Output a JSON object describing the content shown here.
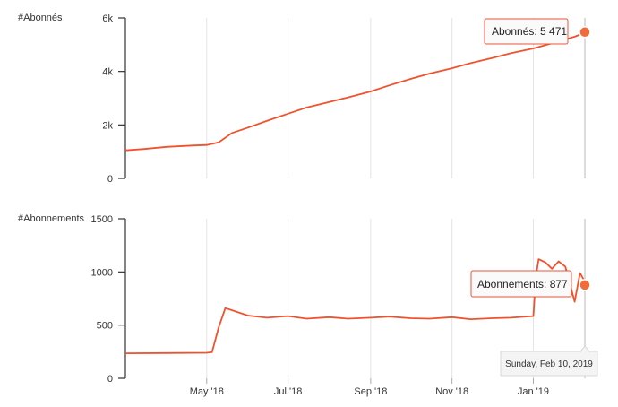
{
  "chart_data": [
    {
      "type": "line",
      "title": "",
      "ylabel": "#Abonnés",
      "xlabel": "",
      "ylim": [
        0,
        6000
      ],
      "yticks": [
        "0",
        "2k",
        "4k",
        "6k"
      ],
      "xticks": [
        "May '18",
        "Jul '18",
        "Sep '18",
        "Nov '18",
        "Jan '19"
      ],
      "x": [
        "2018-03-01",
        "2018-03-15",
        "2018-04-01",
        "2018-04-20",
        "2018-05-01",
        "2018-05-10",
        "2018-05-20",
        "2018-06-01",
        "2018-06-15",
        "2018-07-01",
        "2018-07-15",
        "2018-08-01",
        "2018-08-15",
        "2018-09-01",
        "2018-09-15",
        "2018-10-01",
        "2018-10-15",
        "2018-11-01",
        "2018-11-15",
        "2018-12-01",
        "2018-12-15",
        "2019-01-01",
        "2019-01-15",
        "2019-02-01",
        "2019-02-10"
      ],
      "series": [
        {
          "name": "",
          "values": [
            1050,
            1100,
            1180,
            1230,
            1250,
            1350,
            1700,
            1900,
            2150,
            2420,
            2650,
            2860,
            3030,
            3250,
            3480,
            3720,
            3920,
            4120,
            4310,
            4500,
            4680,
            4860,
            5050,
            5300,
            5471
          ]
        }
      ],
      "tooltip": {
        "label": "Abonnés: 5 471",
        "value": 5471
      }
    },
    {
      "type": "line",
      "title": "",
      "ylabel": "#Abonnements",
      "xlabel": "",
      "ylim": [
        0,
        1500
      ],
      "yticks": [
        "0",
        "500",
        "1000",
        "1500"
      ],
      "xticks": [
        "May '18",
        "Jul '18",
        "Sep '18",
        "Nov '18",
        "Jan '19"
      ],
      "x": [
        "2018-03-01",
        "2018-04-01",
        "2018-05-01",
        "2018-05-05",
        "2018-05-10",
        "2018-05-15",
        "2018-06-01",
        "2018-06-15",
        "2018-07-01",
        "2018-07-15",
        "2018-08-01",
        "2018-08-15",
        "2018-09-01",
        "2018-09-15",
        "2018-10-01",
        "2018-10-15",
        "2018-11-01",
        "2018-11-15",
        "2018-12-01",
        "2018-12-15",
        "2019-01-01",
        "2019-01-03",
        "2019-01-05",
        "2019-01-10",
        "2019-01-15",
        "2019-01-20",
        "2019-01-25",
        "2019-02-01",
        "2019-02-05",
        "2019-02-10"
      ],
      "series": [
        {
          "name": "",
          "values": [
            235,
            238,
            240,
            245,
            480,
            660,
            590,
            570,
            585,
            560,
            575,
            560,
            570,
            580,
            565,
            560,
            575,
            555,
            565,
            570,
            585,
            960,
            1120,
            1090,
            1030,
            1100,
            1050,
            720,
            990,
            877
          ]
        }
      ],
      "tooltip": {
        "label": "Abonnements: 877",
        "value": 877
      }
    }
  ],
  "hover_date": "Sunday, Feb 10, 2019",
  "colors": {
    "line": "#f0522d",
    "dot": "#f26b3a",
    "grid": "#e4e4e4",
    "axis": "#333333",
    "tooltip_border": "#e8563a"
  }
}
